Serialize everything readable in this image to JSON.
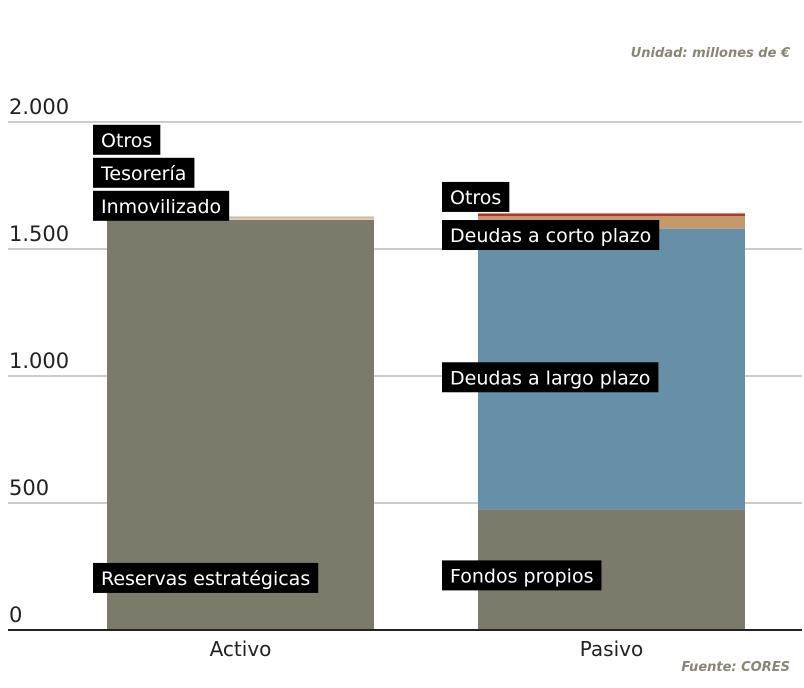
{
  "unit_note": "Unidad: millones de €",
  "source_note": "Fuente: CORES",
  "colors": {
    "otros": "#b5332a",
    "deudas_corto": "#c49a6c",
    "deudas_largo": "#6590a7",
    "fondos_propios": "#7c7a6b",
    "reservas": "#7c7a6b",
    "tesoreria": "#c9b49a",
    "inmovilizado": "#e2d6c4",
    "otros_activo": "#c9b49a",
    "axis": "#222222",
    "grid": "#9a9a9a"
  },
  "chart_data": {
    "type": "bar",
    "stacked": true,
    "categories": [
      "Activo",
      "Pasivo"
    ],
    "ylim": [
      0,
      2000
    ],
    "yticks": [
      0,
      500,
      1000,
      1500,
      2000
    ],
    "ytick_labels": [
      "0",
      "500",
      "1.000",
      "1.500",
      "2.000"
    ],
    "grid": true,
    "title": "",
    "xlabel": "",
    "ylabel": "",
    "stacks": [
      {
        "category": "Activo",
        "segments": [
          {
            "name": "Reservas estratégicas",
            "value": 1615,
            "color_key": "reservas"
          },
          {
            "name": "Inmovilizado",
            "value": 5,
            "color_key": "inmovilizado"
          },
          {
            "name": "Tesorería",
            "value": 5,
            "color_key": "tesoreria"
          },
          {
            "name": "Otros",
            "value": 3,
            "color_key": "otros_activo"
          }
        ]
      },
      {
        "category": "Pasivo",
        "segments": [
          {
            "name": "Fondos propios",
            "value": 475,
            "color_key": "fondos_propios"
          },
          {
            "name": "Deudas a largo plazo",
            "value": 1105,
            "color_key": "deudas_largo"
          },
          {
            "name": "Deudas a corto plazo",
            "value": 50,
            "color_key": "deudas_corto"
          },
          {
            "name": "Otros",
            "value": 10,
            "color_key": "otros"
          }
        ]
      }
    ],
    "labels": [
      {
        "text": "Otros",
        "category": "Activo",
        "anchor_value": 1930
      },
      {
        "text": "Tesorería",
        "category": "Activo",
        "anchor_value": 1800
      },
      {
        "text": "Inmovilizado",
        "category": "Activo",
        "anchor_value": 1670
      },
      {
        "text": "Reservas estratégicas",
        "category": "Activo",
        "anchor_value": 205
      },
      {
        "text": "Otros",
        "category": "Pasivo",
        "anchor_value": 1705
      },
      {
        "text": "Deudas a corto plazo",
        "category": "Pasivo",
        "anchor_value": 1555
      },
      {
        "text": "Deudas a largo plazo",
        "category": "Pasivo",
        "anchor_value": 995
      },
      {
        "text": "Fondos propios",
        "category": "Pasivo",
        "anchor_value": 215
      }
    ]
  }
}
